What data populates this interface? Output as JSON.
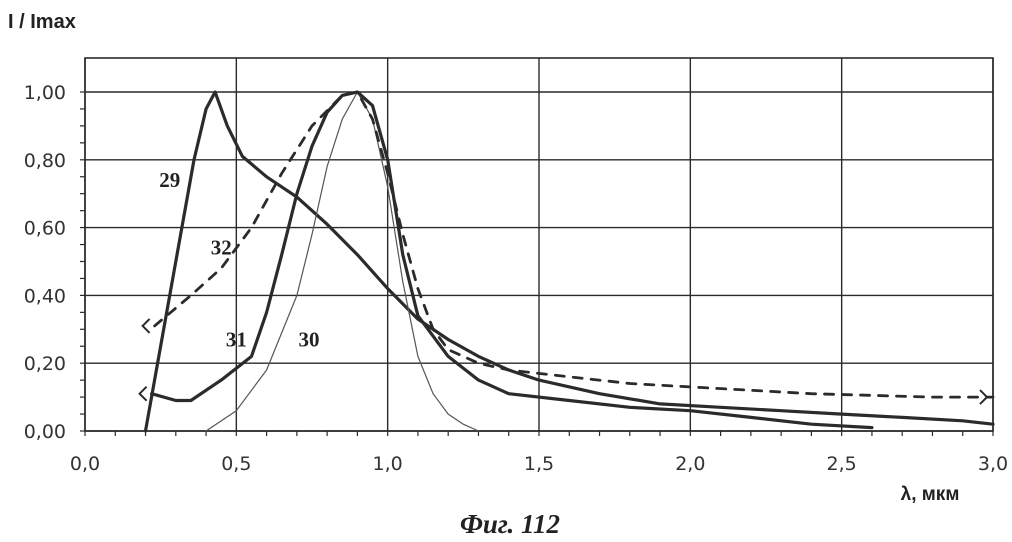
{
  "chart_data": {
    "type": "line",
    "ylabel": "I / Imax",
    "xlabel": "λ, мкм",
    "caption": "Фиг. 112",
    "xlim": [
      0,
      3
    ],
    "ylim": [
      0,
      1
    ],
    "x_ticks": [
      0,
      0.5,
      1,
      1.5,
      2,
      2.5,
      3
    ],
    "x_tick_labels": [
      "0,0",
      "0,5",
      "1,0",
      "1,5",
      "2,0",
      "2,5",
      "3,0"
    ],
    "y_ticks": [
      0,
      0.2,
      0.4,
      0.6,
      0.8,
      1.0
    ],
    "y_tick_labels": [
      "0,00",
      "0,20",
      "0,40",
      "0,60",
      "0,80",
      "1,00"
    ],
    "grid": true,
    "series": [
      {
        "name": "29",
        "style": "solid-thick",
        "label_at": [
          0.28,
          0.72
        ],
        "x": [
          0.2,
          0.24,
          0.3,
          0.36,
          0.4,
          0.43,
          0.47,
          0.52,
          0.6,
          0.7,
          0.8,
          0.9,
          1.0,
          1.1,
          1.2,
          1.3,
          1.4,
          1.5,
          1.7,
          1.9,
          2.1,
          2.3,
          2.5,
          2.7,
          2.9,
          3.0
        ],
        "y": [
          0.0,
          0.2,
          0.5,
          0.8,
          0.95,
          1.0,
          0.9,
          0.81,
          0.75,
          0.69,
          0.61,
          0.52,
          0.42,
          0.33,
          0.27,
          0.22,
          0.18,
          0.15,
          0.11,
          0.08,
          0.07,
          0.06,
          0.05,
          0.04,
          0.03,
          0.02
        ]
      },
      {
        "name": "30",
        "style": "solid-thin",
        "label_at": [
          0.74,
          0.25
        ],
        "x": [
          0.4,
          0.5,
          0.6,
          0.7,
          0.75,
          0.8,
          0.85,
          0.9,
          0.95,
          1.0,
          1.05,
          1.1,
          1.15,
          1.2,
          1.25,
          1.3
        ],
        "y": [
          0.0,
          0.06,
          0.18,
          0.4,
          0.58,
          0.78,
          0.92,
          1.0,
          0.92,
          0.72,
          0.44,
          0.22,
          0.11,
          0.05,
          0.02,
          0.0
        ]
      },
      {
        "name": "31",
        "style": "solid-thick",
        "label_at": [
          0.5,
          0.25
        ],
        "arrow_at": "left",
        "x": [
          0.22,
          0.3,
          0.35,
          0.45,
          0.55,
          0.6,
          0.65,
          0.7,
          0.75,
          0.8,
          0.85,
          0.9,
          0.95,
          1.0,
          1.05,
          1.1,
          1.2,
          1.3,
          1.4,
          1.6,
          1.8,
          2.0,
          2.2,
          2.4,
          2.6
        ],
        "y": [
          0.11,
          0.09,
          0.09,
          0.15,
          0.22,
          0.35,
          0.52,
          0.7,
          0.84,
          0.94,
          0.99,
          1.0,
          0.96,
          0.8,
          0.52,
          0.34,
          0.22,
          0.15,
          0.11,
          0.09,
          0.07,
          0.06,
          0.04,
          0.02,
          0.01
        ]
      },
      {
        "name": "32",
        "style": "dashed",
        "label_at": [
          0.45,
          0.52
        ],
        "arrow_at": "both",
        "x": [
          0.23,
          0.35,
          0.45,
          0.55,
          0.65,
          0.75,
          0.85,
          0.9,
          0.95,
          1.0,
          1.05,
          1.1,
          1.15,
          1.2,
          1.3,
          1.4,
          1.6,
          1.8,
          2.0,
          2.4,
          2.8,
          3.0
        ],
        "y": [
          0.31,
          0.4,
          0.48,
          0.6,
          0.76,
          0.9,
          0.99,
          1.0,
          0.92,
          0.76,
          0.58,
          0.42,
          0.3,
          0.24,
          0.2,
          0.18,
          0.16,
          0.14,
          0.13,
          0.11,
          0.1,
          0.1
        ]
      }
    ]
  }
}
